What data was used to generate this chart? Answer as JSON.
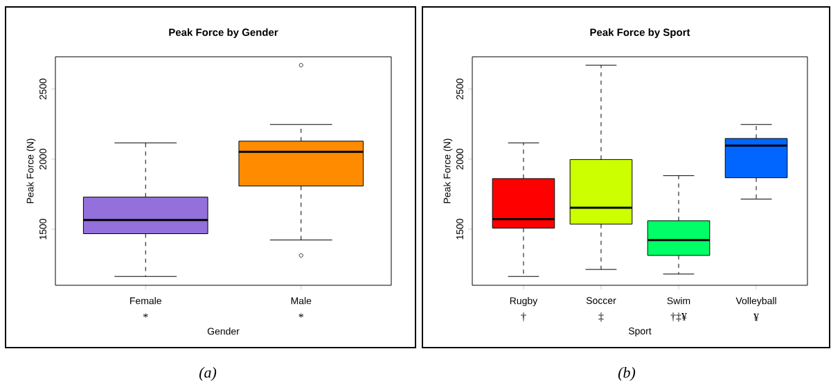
{
  "chart_data": [
    {
      "type": "box",
      "title": "Peak Force by Gender",
      "xlabel": "Gender",
      "ylabel": "Peak Force (N)",
      "categories": [
        "Female",
        "Male"
      ],
      "colors": [
        "#9370db",
        "#ff8c00"
      ],
      "boxes": [
        {
          "low": 1163,
          "q1": 1468,
          "median": 1566,
          "q3": 1729,
          "high": 2116
        },
        {
          "low": 1423,
          "q1": 1808,
          "median": 2052,
          "q3": 2128,
          "high": 2247,
          "outliers": [
            2670,
            1313
          ]
        }
      ],
      "ylim": [
        1100,
        2730
      ],
      "yticks": [
        1500,
        2000,
        2500
      ],
      "annotations": [
        "*",
        "*",
        "(a)"
      ]
    },
    {
      "type": "box",
      "title": "Peak Force by Sport",
      "xlabel": "Sport",
      "ylabel": "Peak Force (N)",
      "categories": [
        "Rugby",
        "Soccer",
        "Swim",
        "Volleyball"
      ],
      "colors": [
        "#ff0000",
        "#ccff00",
        "#00ff66",
        "#0066ff"
      ],
      "boxes": [
        {
          "low": 1163,
          "q1": 1508,
          "median": 1572,
          "q3": 1861,
          "high": 2116
        },
        {
          "low": 1213,
          "q1": 1536,
          "median": 1653,
          "q3": 1997,
          "high": 2670
        },
        {
          "low": 1180,
          "q1": 1313,
          "median": 1422,
          "q3": 1560,
          "high": 1882
        },
        {
          "low": 1715,
          "q1": 1867,
          "median": 2097,
          "q3": 2147,
          "high": 2247
        }
      ],
      "ylim": [
        1100,
        2730
      ],
      "yticks": [
        1500,
        2000,
        2500
      ],
      "annotations": [
        "†",
        "‡",
        "†‡¥",
        "¥",
        "(b)"
      ]
    }
  ]
}
